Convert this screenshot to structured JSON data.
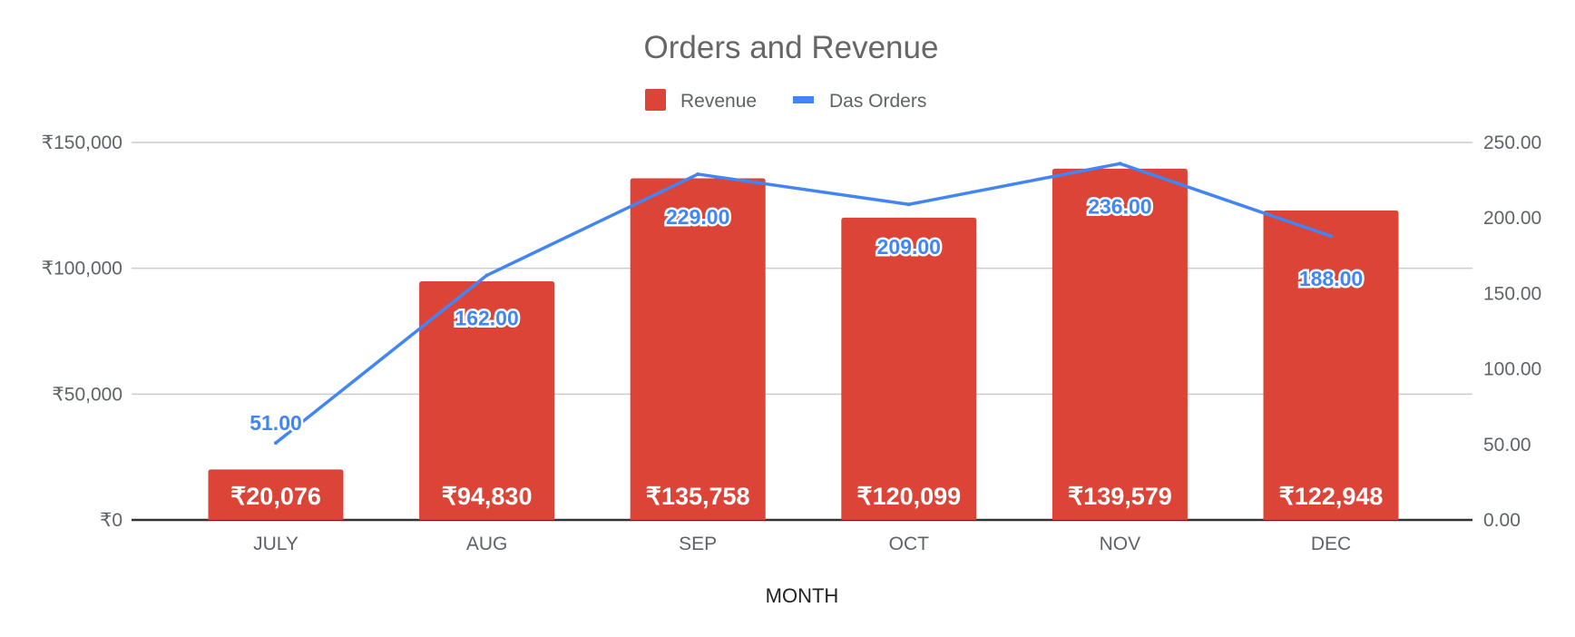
{
  "chart_data": {
    "type": "bar+line",
    "title": "Orders and Revenue",
    "xlabel": "MONTH",
    "categories": [
      "JULY",
      "AUG",
      "SEP",
      "OCT",
      "NOV",
      "DEC"
    ],
    "series": [
      {
        "name": "Revenue",
        "type": "bar",
        "axis": "left",
        "color": "#db4437",
        "values": [
          20076,
          94830,
          135758,
          120099,
          139579,
          122948
        ],
        "labels": [
          "₹20,076",
          "₹94,830",
          "₹135,758",
          "₹120,099",
          "₹139,579",
          "₹122,948"
        ]
      },
      {
        "name": "Das Orders",
        "type": "line",
        "axis": "right",
        "color": "#4285f4",
        "values": [
          51,
          162,
          229,
          209,
          236,
          188
        ],
        "labels": [
          "51.00",
          "162.00",
          "229.00",
          "209.00",
          "236.00",
          "188.00"
        ]
      }
    ],
    "left_axis": {
      "range": [
        0,
        150000
      ],
      "ticks": [
        0,
        50000,
        100000,
        150000
      ],
      "tick_labels": [
        "₹0",
        "₹50,000",
        "₹100,000",
        "₹150,000"
      ]
    },
    "right_axis": {
      "range": [
        0,
        250
      ],
      "ticks": [
        0,
        50,
        100,
        150,
        200,
        250
      ],
      "tick_labels": [
        "0.00",
        "50.00",
        "100.00",
        "150.00",
        "200.00",
        "250.00"
      ]
    },
    "grid": true,
    "legend": "top-center"
  }
}
